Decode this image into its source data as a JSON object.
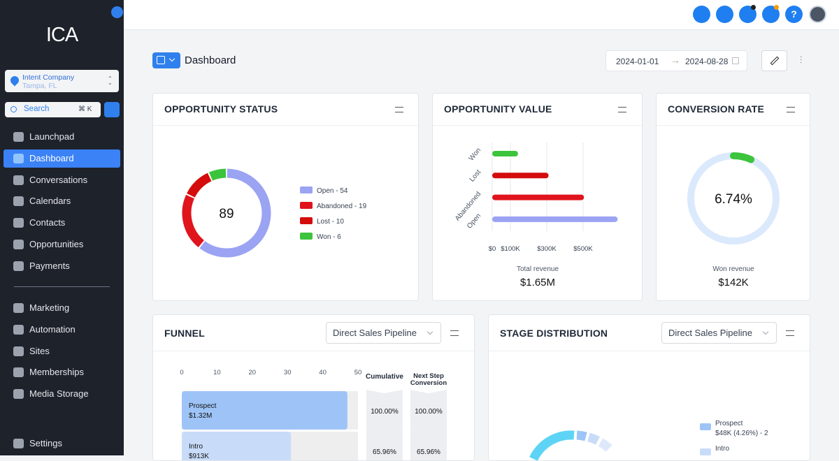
{
  "sidebar": {
    "logo": "ICA",
    "company": {
      "name": "Intent Company",
      "location": "Tampa, FL"
    },
    "search": {
      "placeholder": "Search",
      "shortcut": "⌘ K"
    },
    "nav_main": [
      "Launchpad",
      "Dashboard",
      "Conversations",
      "Calendars",
      "Contacts",
      "Opportunities",
      "Payments"
    ],
    "nav_more": [
      "Marketing",
      "Automation",
      "Sites",
      "Memberships",
      "Media Storage"
    ],
    "active": "Dashboard",
    "settings": "Settings"
  },
  "header": {
    "help": "?"
  },
  "page": {
    "title": "Dashboard",
    "date_start": "2024-01-01",
    "date_end": "2024-08-28"
  },
  "chart_data": [
    {
      "type": "pie",
      "title": "OPPORTUNITY STATUS",
      "categories": [
        "Open",
        "Abandoned",
        "Lost",
        "Won"
      ],
      "values": [
        54,
        19,
        10,
        6
      ],
      "legend_labels": [
        "Open - 54",
        "Abandoned - 19",
        "Lost - 10",
        "Won - 6"
      ],
      "colors": [
        "#9ba3f3",
        "#e0141c",
        "#d40c0c",
        "#3cc43c"
      ],
      "total": 89
    },
    {
      "type": "hbar",
      "title": "OPPORTUNITY VALUE",
      "categories": [
        "Won",
        "Lost",
        "Abandoned",
        "Open"
      ],
      "values": [
        142000,
        310000,
        505000,
        690000
      ],
      "colors": [
        "#3cc43c",
        "#d40c0c",
        "#e0141c",
        "#9ba3f3"
      ],
      "xlim": [
        0,
        700000
      ],
      "xticks": [
        {
          "value": 0,
          "label": "$0"
        },
        {
          "value": 100000,
          "label": "$100K"
        },
        {
          "value": 300000,
          "label": "$300K"
        },
        {
          "value": 500000,
          "label": "$500K"
        }
      ],
      "grid": true,
      "caption": "Total revenue",
      "caption_value": "$1.65M"
    },
    {
      "type": "gauge",
      "title": "CONVERSION RATE",
      "value": 6.74,
      "value_label": "6.74%",
      "max": 100,
      "color": "#3cc43c",
      "track_color": "#dbe9fc",
      "caption": "Won revenue",
      "caption_value": "$142K"
    },
    {
      "type": "funnel",
      "title": "FUNNEL",
      "pipeline": "Direct Sales Pipeline",
      "categories": [
        "Prospect",
        "Intro"
      ],
      "values": [
        47,
        31
      ],
      "amounts": [
        "$1.32M",
        "$913K"
      ],
      "colors": [
        "#9ec4f7",
        "#c8dcf9"
      ],
      "xlim": [
        0,
        50
      ],
      "xticks": [
        0,
        10,
        20,
        30,
        40,
        50
      ],
      "columns": [
        "Cumulative",
        "Next Step Conversion"
      ],
      "cumulative": [
        "100.00%",
        "65.96%"
      ],
      "next_step": [
        "100.00%",
        "65.96%"
      ]
    }
  ],
  "stage_distribution": {
    "title": "STAGE DISTRIBUTION",
    "pipeline": "Direct Sales Pipeline",
    "legend": [
      {
        "name": "Prospect",
        "detail": "$48K (4.26%) - 2",
        "color": "#9ec4f7"
      },
      {
        "name": "Intro",
        "color": "#c8dcf9"
      }
    ]
  }
}
